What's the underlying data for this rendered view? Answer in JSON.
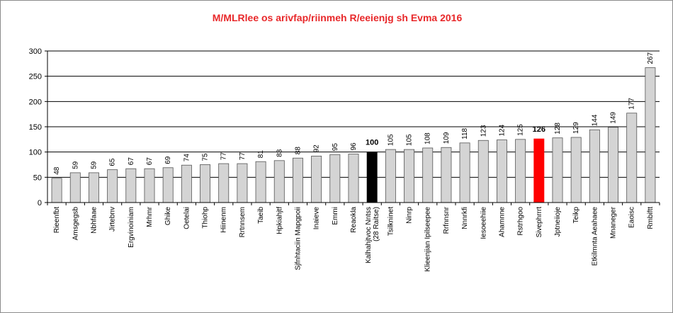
{
  "chart_data": {
    "type": "bar",
    "title": "M/MLRlee os arivfap/riinmeh R/eeienjg sh Evma 2016",
    "xlabel": "",
    "ylabel": "",
    "ylim": [
      0,
      300
    ],
    "yticks": [
      "0",
      "50",
      "100",
      "150",
      "200",
      "250",
      "300"
    ],
    "grid": true,
    "categories": [
      "Rieenfbt",
      "Amsgegsb",
      "Nbhfaae",
      "Jirtebnv",
      "Ergvinoiniam",
      "Mrhmr",
      "Ghike",
      "Oetelai",
      "Thiohp",
      "Hiinenm",
      "Rrtnnsem",
      "Taeib",
      "Hpkiahjtf",
      "Sjfnhtaciin Mapgpoii",
      "Inaieve",
      "Emmi",
      "Reaokla",
      "Kalhahjtvoc Nntss (28 Raitse)",
      "Tsilkninet",
      "Ninrp",
      "Klieenjian Ipilseepee",
      "Rrfnnsnr",
      "Nnnrkfi",
      "Iesoeehiie",
      "Ahamnne",
      "Rstrhgoo",
      "Sivephrrrt",
      "Jptneiioje",
      "Teikp",
      "Etkilmnta Aeahaee",
      "Mnaneger",
      "Eaoisc",
      "Rmbiftt"
    ],
    "values": [
      48,
      59,
      59,
      65,
      67,
      67,
      69,
      74,
      75,
      77,
      77,
      81,
      83,
      88,
      92,
      95,
      96,
      100,
      105,
      105,
      108,
      109,
      118,
      123,
      124,
      125,
      126,
      128,
      129,
      144,
      149,
      177,
      267
    ],
    "value_labels": [
      "48",
      "59",
      "59",
      "65",
      "67",
      "67",
      "69",
      "74",
      "75",
      "77",
      "77",
      "81",
      "83",
      "88",
      "92",
      "95",
      "96",
      "100",
      "105",
      "105",
      "108",
      "109",
      "118",
      "123",
      "124",
      "125",
      "126",
      "128",
      "129",
      "144",
      "149",
      "177",
      "267"
    ],
    "highlight": {
      "Kalhahjtvoc Nntss (28 Raitse)": "#000000",
      "Sivephrrrt": "#ff0000"
    },
    "bold_labels": [
      "Kalhahjtvoc Nntss (28 Raitse)",
      "Sivephrrrt"
    ],
    "colors": {
      "bar": "#d4d4d4",
      "bar_edge": "#555555",
      "title": "#e8282a",
      "grid": "#000000"
    }
  }
}
